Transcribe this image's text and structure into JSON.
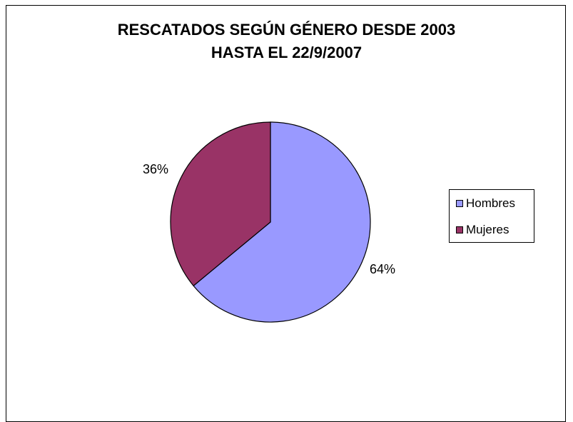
{
  "chart_data": {
    "type": "pie",
    "title_lines": [
      "RESCATADOS SEGÚN GÉNERO DESDE 2003",
      "HASTA EL 22/9/2007"
    ],
    "categories": [
      "Hombres",
      "Mujeres"
    ],
    "values": [
      64,
      36
    ],
    "data_labels": [
      "64%",
      "36%"
    ],
    "colors": [
      "#9999ff",
      "#993366"
    ],
    "legend_position": "right",
    "start_angle": "12 o'clock, clockwise"
  }
}
